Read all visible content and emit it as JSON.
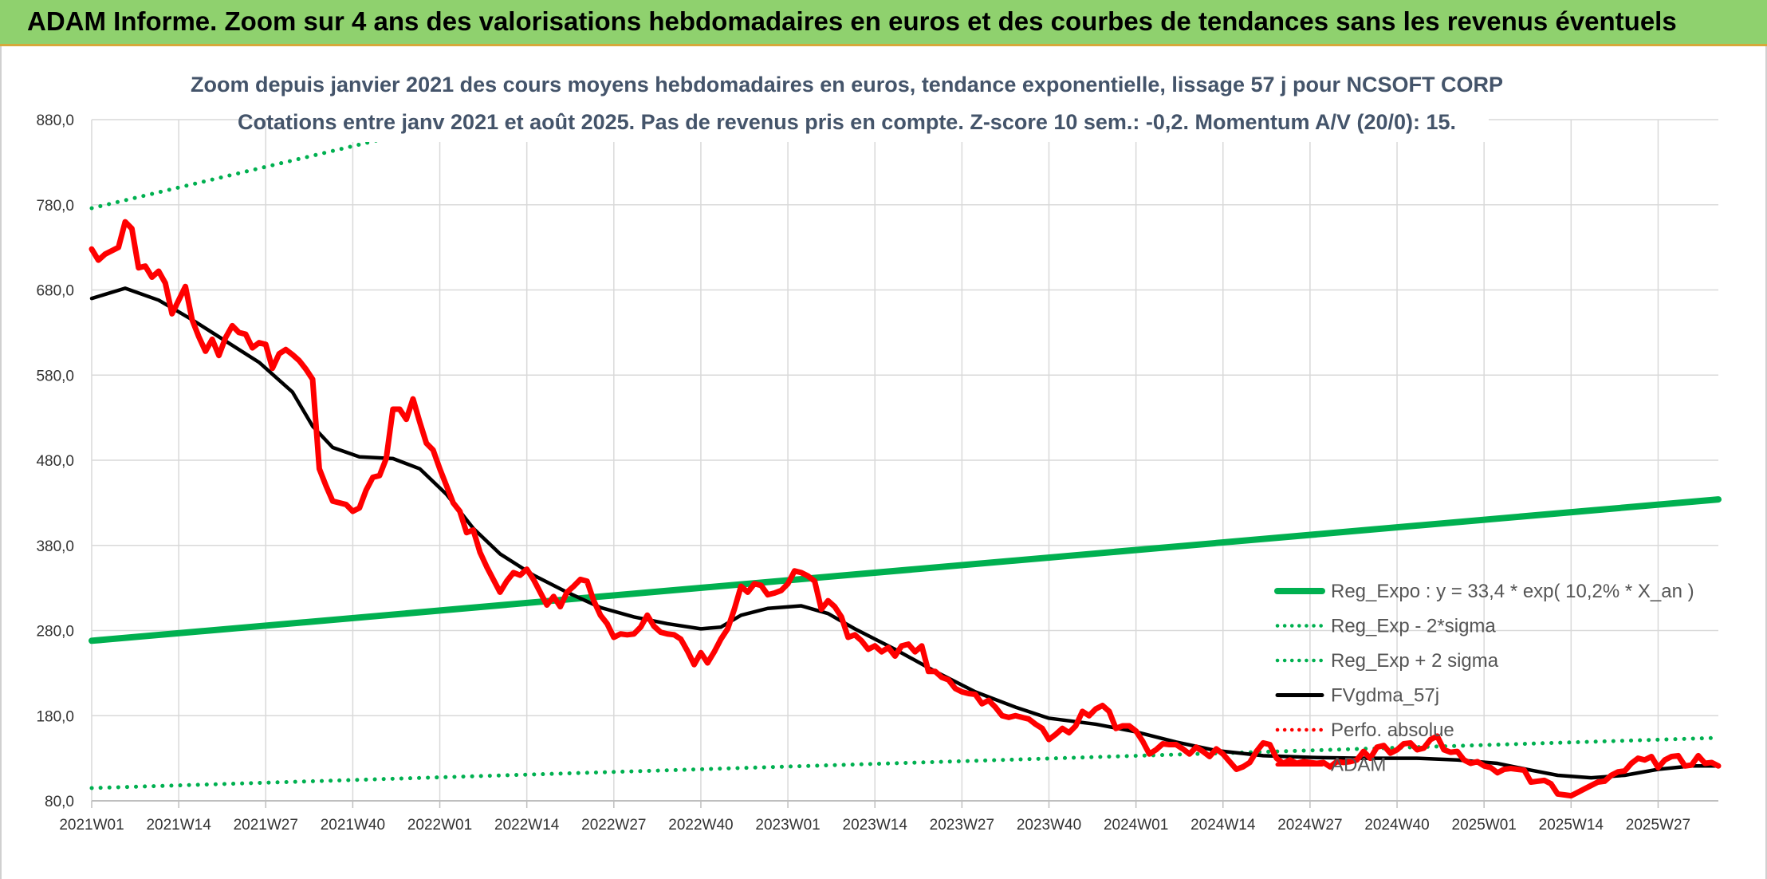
{
  "banner": {
    "title": "ADAM Informe. Zoom sur 4 ans des valorisations hebdomadaires en euros et des courbes de tendances sans les revenus éventuels"
  },
  "chart_data": {
    "type": "line",
    "title": "Zoom depuis janvier 2021 des cours moyens hebdomadaires en euros, tendance exponentielle, lissage 57 j pour NCSOFT CORP",
    "subtitle": "Cotations entre janv 2021 et août 2025. Pas de revenus pris en compte. Z-score 10 sem.: -0,2. Momentum A/V (20/0): 15.",
    "xlabel": "",
    "ylabel": "",
    "ylim": [
      80,
      900
    ],
    "yticks": [
      "80,0",
      "180,0",
      "280,0",
      "380,0",
      "480,0",
      "580,0",
      "680,0",
      "780,0",
      "880,0"
    ],
    "ytick_values": [
      80,
      180,
      280,
      380,
      480,
      580,
      680,
      780,
      880
    ],
    "xlim": [
      0,
      243
    ],
    "xticks": [
      "2021W01",
      "2021W14",
      "2021W27",
      "2021W40",
      "2022W01",
      "2022W14",
      "2022W27",
      "2022W40",
      "2023W01",
      "2023W14",
      "2023W27",
      "2023W40",
      "2024W01",
      "2024W14",
      "2024W27",
      "2024W40",
      "2025W01",
      "2025W14",
      "2025W27"
    ],
    "xtick_positions": [
      0,
      13,
      26,
      39,
      52,
      65,
      78,
      91,
      104,
      117,
      130,
      143,
      156,
      169,
      182,
      195,
      208,
      221,
      234
    ],
    "grid": true,
    "legend_position": "right",
    "series": [
      {
        "name": "Reg_Expo : y = 33,4 * exp( 10,2% *  X_an )",
        "color": "#00b050",
        "style": "solid",
        "points": [
          [
            0,
            268
          ],
          [
            243,
            434
          ]
        ]
      },
      {
        "name": "Reg_Exp - 2*sigma",
        "color": "#00b050",
        "style": "dotted",
        "points": [
          [
            0,
            95
          ],
          [
            243,
            154
          ]
        ]
      },
      {
        "name": "Reg_Exp + 2 sigma",
        "color": "#00b050",
        "style": "dotted",
        "points": [
          [
            0,
            776
          ],
          [
            243,
            1230
          ]
        ]
      },
      {
        "name": "FVgdma_57j",
        "color": "#000000",
        "style": "solid",
        "points": [
          [
            0,
            670
          ],
          [
            5,
            682
          ],
          [
            10,
            668
          ],
          [
            15,
            645
          ],
          [
            20,
            620
          ],
          [
            25,
            595
          ],
          [
            30,
            560
          ],
          [
            33,
            520
          ],
          [
            36,
            495
          ],
          [
            40,
            484
          ],
          [
            45,
            482
          ],
          [
            49,
            470
          ],
          [
            53,
            440
          ],
          [
            57,
            400
          ],
          [
            61,
            370
          ],
          [
            66,
            345
          ],
          [
            71,
            325
          ],
          [
            76,
            307
          ],
          [
            81,
            296
          ],
          [
            86,
            288
          ],
          [
            91,
            282
          ],
          [
            94,
            284
          ],
          [
            97,
            298
          ],
          [
            101,
            306
          ],
          [
            106,
            309
          ],
          [
            110,
            300
          ],
          [
            114,
            282
          ],
          [
            120,
            258
          ],
          [
            126,
            232
          ],
          [
            132,
            208
          ],
          [
            138,
            190
          ],
          [
            143,
            177
          ],
          [
            150,
            170
          ],
          [
            156,
            161
          ],
          [
            162,
            149
          ],
          [
            168,
            139
          ],
          [
            175,
            133
          ],
          [
            182,
            131
          ],
          [
            190,
            130
          ],
          [
            198,
            130
          ],
          [
            204,
            128
          ],
          [
            210,
            124
          ],
          [
            215,
            116
          ],
          [
            219,
            110
          ],
          [
            224,
            107
          ],
          [
            229,
            110
          ],
          [
            234,
            117
          ],
          [
            239,
            121
          ],
          [
            243,
            121
          ]
        ]
      },
      {
        "name": "Perfo. absolue",
        "color": "#ff0000",
        "style": "dotted",
        "points": []
      },
      {
        "name": "ADAM",
        "color": "#ff0000",
        "style": "solid",
        "points": [
          [
            0,
            728
          ],
          [
            1,
            715
          ],
          [
            2,
            722
          ],
          [
            3,
            726
          ],
          [
            4,
            730
          ],
          [
            5,
            760
          ],
          [
            6,
            752
          ],
          [
            7,
            706
          ],
          [
            8,
            708
          ],
          [
            9,
            695
          ],
          [
            10,
            702
          ],
          [
            11,
            688
          ],
          [
            12,
            652
          ],
          [
            13,
            668
          ],
          [
            14,
            684
          ],
          [
            15,
            645
          ],
          [
            16,
            625
          ],
          [
            17,
            608
          ],
          [
            18,
            622
          ],
          [
            19,
            603
          ],
          [
            20,
            624
          ],
          [
            21,
            638
          ],
          [
            22,
            630
          ],
          [
            23,
            628
          ],
          [
            24,
            612
          ],
          [
            25,
            618
          ],
          [
            26,
            616
          ],
          [
            27,
            588
          ],
          [
            28,
            605
          ],
          [
            29,
            610
          ],
          [
            30,
            604
          ],
          [
            31,
            597
          ],
          [
            32,
            587
          ],
          [
            33,
            575
          ],
          [
            34,
            470
          ],
          [
            35,
            450
          ],
          [
            36,
            432
          ],
          [
            37,
            430
          ],
          [
            38,
            428
          ],
          [
            39,
            420
          ],
          [
            40,
            424
          ],
          [
            41,
            445
          ],
          [
            42,
            460
          ],
          [
            43,
            462
          ],
          [
            44,
            482
          ],
          [
            45,
            540
          ],
          [
            46,
            540
          ],
          [
            47,
            528
          ],
          [
            48,
            552
          ],
          [
            49,
            525
          ],
          [
            50,
            500
          ],
          [
            51,
            492
          ],
          [
            52,
            470
          ],
          [
            53,
            450
          ],
          [
            54,
            430
          ],
          [
            55,
            420
          ],
          [
            56,
            395
          ],
          [
            57,
            398
          ],
          [
            58,
            372
          ],
          [
            59,
            355
          ],
          [
            60,
            340
          ],
          [
            61,
            325
          ],
          [
            62,
            338
          ],
          [
            63,
            348
          ],
          [
            64,
            345
          ],
          [
            65,
            352
          ],
          [
            66,
            340
          ],
          [
            67,
            325
          ],
          [
            68,
            310
          ],
          [
            69,
            320
          ],
          [
            70,
            308
          ],
          [
            71,
            325
          ],
          [
            72,
            332
          ],
          [
            73,
            340
          ],
          [
            74,
            338
          ],
          [
            75,
            315
          ],
          [
            76,
            298
          ],
          [
            77,
            288
          ],
          [
            78,
            272
          ],
          [
            79,
            276
          ],
          [
            80,
            275
          ],
          [
            81,
            276
          ],
          [
            82,
            284
          ],
          [
            83,
            298
          ],
          [
            84,
            285
          ],
          [
            85,
            278
          ],
          [
            86,
            276
          ],
          [
            87,
            275
          ],
          [
            88,
            270
          ],
          [
            89,
            256
          ],
          [
            90,
            240
          ],
          [
            91,
            254
          ],
          [
            92,
            242
          ],
          [
            93,
            255
          ],
          [
            94,
            270
          ],
          [
            95,
            282
          ],
          [
            96,
            305
          ],
          [
            97,
            332
          ],
          [
            98,
            325
          ],
          [
            99,
            335
          ],
          [
            100,
            333
          ],
          [
            101,
            322
          ],
          [
            102,
            324
          ],
          [
            103,
            327
          ],
          [
            104,
            335
          ],
          [
            105,
            350
          ],
          [
            106,
            348
          ],
          [
            107,
            344
          ],
          [
            108,
            338
          ],
          [
            109,
            305
          ],
          [
            110,
            315
          ],
          [
            111,
            308
          ],
          [
            112,
            296
          ],
          [
            113,
            272
          ],
          [
            114,
            275
          ],
          [
            115,
            268
          ],
          [
            116,
            258
          ],
          [
            117,
            262
          ],
          [
            118,
            255
          ],
          [
            119,
            260
          ],
          [
            120,
            250
          ],
          [
            121,
            262
          ],
          [
            122,
            264
          ],
          [
            123,
            255
          ],
          [
            124,
            262
          ],
          [
            125,
            232
          ],
          [
            126,
            232
          ],
          [
            127,
            225
          ],
          [
            128,
            222
          ],
          [
            129,
            212
          ],
          [
            130,
            208
          ],
          [
            131,
            206
          ],
          [
            132,
            205
          ],
          [
            133,
            194
          ],
          [
            134,
            198
          ],
          [
            135,
            190
          ],
          [
            136,
            180
          ],
          [
            137,
            178
          ],
          [
            138,
            180
          ],
          [
            139,
            178
          ],
          [
            140,
            176
          ],
          [
            141,
            170
          ],
          [
            142,
            165
          ],
          [
            143,
            152
          ],
          [
            144,
            158
          ],
          [
            145,
            165
          ],
          [
            146,
            160
          ],
          [
            147,
            168
          ],
          [
            148,
            185
          ],
          [
            149,
            180
          ],
          [
            150,
            188
          ],
          [
            151,
            192
          ],
          [
            152,
            185
          ],
          [
            153,
            165
          ],
          [
            154,
            168
          ],
          [
            155,
            168
          ],
          [
            156,
            162
          ],
          [
            157,
            150
          ],
          [
            158,
            135
          ],
          [
            159,
            140
          ],
          [
            160,
            147
          ],
          [
            161,
            146
          ],
          [
            162,
            146
          ],
          [
            163,
            141
          ],
          [
            164,
            135
          ],
          [
            165,
            143
          ],
          [
            166,
            138
          ],
          [
            167,
            132
          ],
          [
            168,
            141
          ],
          [
            169,
            135
          ],
          [
            170,
            126
          ],
          [
            171,
            117
          ],
          [
            172,
            120
          ],
          [
            173,
            125
          ],
          [
            174,
            138
          ],
          [
            175,
            148
          ],
          [
            176,
            146
          ],
          [
            177,
            130
          ],
          [
            178,
            124
          ],
          [
            179,
            128
          ],
          [
            180,
            124
          ],
          [
            181,
            126
          ],
          [
            182,
            125
          ],
          [
            183,
            124
          ],
          [
            184,
            125
          ],
          [
            185,
            120
          ],
          [
            186,
            126
          ],
          [
            187,
            125
          ],
          [
            188,
            126
          ],
          [
            189,
            128
          ],
          [
            190,
            138
          ],
          [
            191,
            130
          ],
          [
            192,
            143
          ],
          [
            193,
            145
          ],
          [
            194,
            136
          ],
          [
            195,
            140
          ],
          [
            196,
            147
          ],
          [
            197,
            148
          ],
          [
            198,
            140
          ],
          [
            199,
            142
          ],
          [
            200,
            152
          ],
          [
            201,
            156
          ],
          [
            202,
            140
          ],
          [
            203,
            137
          ],
          [
            204,
            138
          ],
          [
            205,
            128
          ],
          [
            206,
            124
          ],
          [
            207,
            126
          ],
          [
            208,
            121
          ],
          [
            209,
            119
          ],
          [
            210,
            113
          ],
          [
            211,
            117
          ],
          [
            212,
            118
          ],
          [
            213,
            117
          ],
          [
            214,
            116
          ],
          [
            215,
            102
          ],
          [
            216,
            103
          ],
          [
            217,
            104
          ],
          [
            218,
            100
          ],
          [
            219,
            88
          ],
          [
            220,
            87
          ],
          [
            221,
            86
          ],
          [
            222,
            90
          ],
          [
            223,
            94
          ],
          [
            224,
            98
          ],
          [
            225,
            102
          ],
          [
            226,
            103
          ],
          [
            227,
            110
          ],
          [
            228,
            114
          ],
          [
            229,
            115
          ],
          [
            230,
            124
          ],
          [
            231,
            130
          ],
          [
            232,
            128
          ],
          [
            233,
            132
          ],
          [
            234,
            119
          ],
          [
            235,
            128
          ],
          [
            236,
            132
          ],
          [
            237,
            133
          ],
          [
            238,
            121
          ],
          [
            239,
            122
          ],
          [
            240,
            133
          ],
          [
            241,
            124
          ],
          [
            242,
            125
          ],
          [
            243,
            121
          ]
        ]
      }
    ]
  }
}
